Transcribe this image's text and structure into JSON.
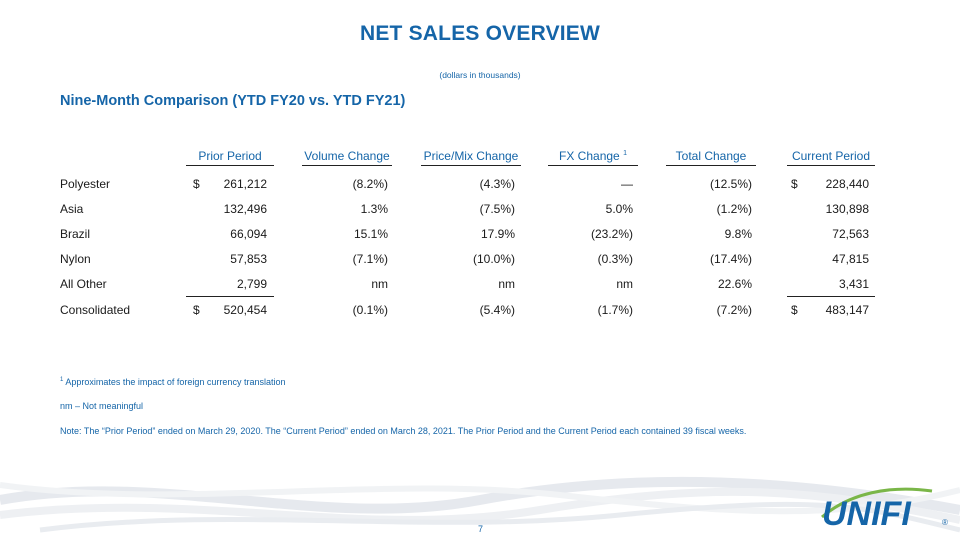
{
  "title": "NET SALES OVERVIEW",
  "subtitle": "(dollars in thousands)",
  "section_title": "Nine-Month Comparison (YTD FY20 vs. YTD FY21)",
  "columns": {
    "prior_period": "Prior Period",
    "volume_change": "Volume Change",
    "price_mix_change": "Price/Mix Change",
    "fx_change": "FX Change",
    "fx_change_sup": "1",
    "total_change": "Total Change",
    "current_period": "Current Period"
  },
  "rows": [
    {
      "label": "Polyester",
      "dollar": "$",
      "prior": "261,212",
      "volume": "(8.2%)",
      "price_mix": "(4.3%)",
      "fx": "—",
      "total": "(12.5%)",
      "dollar2": "$",
      "current": "228,440"
    },
    {
      "label": "Asia",
      "dollar": "",
      "prior": "132,496",
      "volume": "1.3%",
      "price_mix": "(7.5%)",
      "fx": "5.0%",
      "total": "(1.2%)",
      "dollar2": "",
      "current": "130,898"
    },
    {
      "label": "Brazil",
      "dollar": "",
      "prior": "66,094",
      "volume": "15.1%",
      "price_mix": "17.9%",
      "fx": "(23.2%)",
      "total": "9.8%",
      "dollar2": "",
      "current": "72,563"
    },
    {
      "label": "Nylon",
      "dollar": "",
      "prior": "57,853",
      "volume": "(7.1%)",
      "price_mix": "(10.0%)",
      "fx": "(0.3%)",
      "total": "(17.4%)",
      "dollar2": "",
      "current": "47,815"
    },
    {
      "label": "All Other",
      "dollar": "",
      "prior": "2,799",
      "volume": "nm",
      "price_mix": "nm",
      "fx": "nm",
      "total": "22.6%",
      "dollar2": "",
      "current": "3,431"
    },
    {
      "label": "Consolidated",
      "dollar": "$",
      "prior": "520,454",
      "volume": "(0.1%)",
      "price_mix": "(5.4%)",
      "fx": "(1.7%)",
      "total": "(7.2%)",
      "dollar2": "$",
      "current": "483,147"
    }
  ],
  "footnotes": {
    "fx_sup": "1",
    "fx_note": "Approximates the impact of foreign currency translation",
    "nm_note": "nm – Not meaningful",
    "period_note": "Note: The “Prior Period” ended on March 29, 2020. The “Current Period” ended on March 28, 2021.  The Prior Period and the Current Period each contained 39 fiscal weeks."
  },
  "page_number": "7",
  "logo": {
    "text": "UNIFI",
    "registered": "®",
    "color": "#1565a8",
    "accent": "#7ab648"
  },
  "colors": {
    "brand_blue": "#1565a8",
    "logo_green": "#7ab648"
  }
}
